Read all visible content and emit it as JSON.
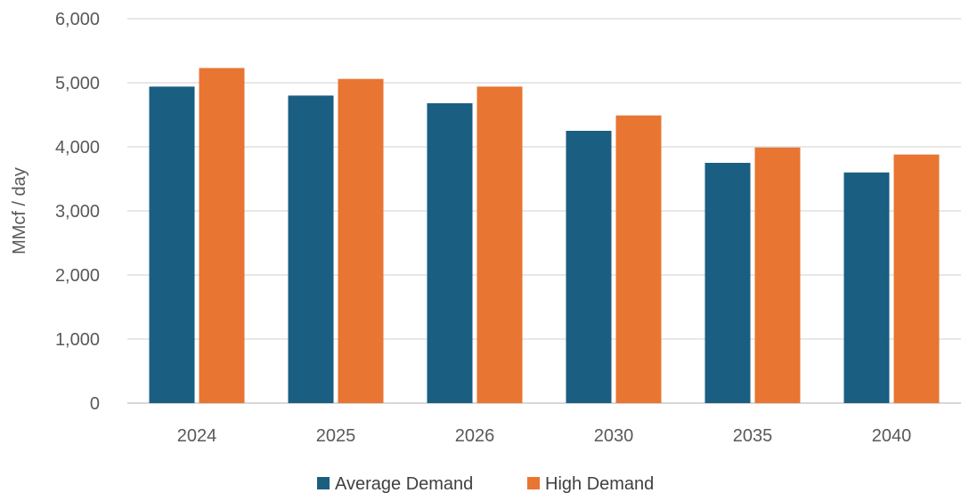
{
  "chart_data": {
    "type": "bar",
    "title": "",
    "xlabel": "",
    "ylabel": "MMcf / day",
    "categories": [
      "2024",
      "2025",
      "2026",
      "2030",
      "2035",
      "2040"
    ],
    "ylim": [
      0,
      6000
    ],
    "yticks": [
      0,
      1000,
      2000,
      3000,
      4000,
      5000,
      6000
    ],
    "ytick_labels": [
      "0",
      "1,000",
      "2,000",
      "3,000",
      "4,000",
      "5,000",
      "6,000"
    ],
    "grid": true,
    "legend_position": "bottom",
    "series": [
      {
        "name": "Average Demand",
        "color": "#1a5e82",
        "values": [
          4940,
          4800,
          4680,
          4250,
          3750,
          3600
        ]
      },
      {
        "name": "High Demand",
        "color": "#e87532",
        "values": [
          5230,
          5060,
          4940,
          4490,
          3990,
          3880
        ]
      }
    ]
  }
}
